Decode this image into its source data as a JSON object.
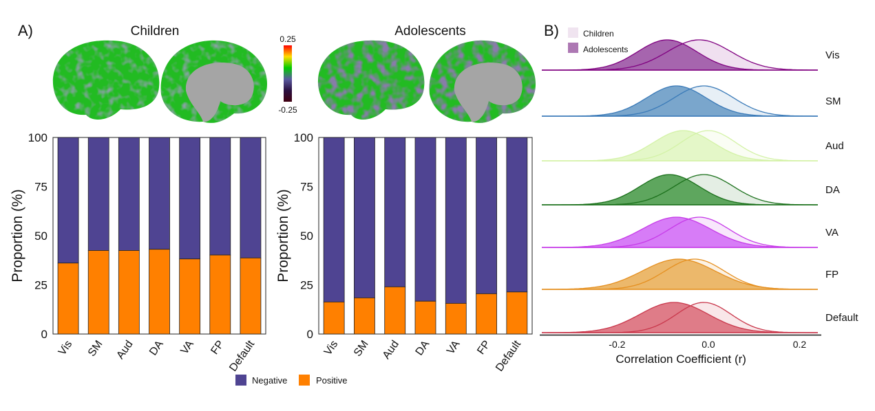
{
  "panel_a_label": "A)",
  "panel_b_label": "B)",
  "brain": {
    "children_title": "Children",
    "adolescents_title": "Adolescents",
    "colorbar_max": "0.25",
    "colorbar_min": "-0.25"
  },
  "legend_bars": {
    "negative": "Negative",
    "positive": "Positive"
  },
  "colors": {
    "negative": "#4f4492",
    "positive": "#ff8000"
  },
  "chart_data": [
    {
      "type": "bar",
      "title": "Children",
      "stacked": true,
      "categories": [
        "Vis",
        "SM",
        "Aud",
        "DA",
        "VA",
        "FP",
        "Default"
      ],
      "series": [
        {
          "name": "Positive",
          "values": [
            36.1,
            42.5,
            42.5,
            43.1,
            38.2,
            40.2,
            38.7
          ]
        },
        {
          "name": "Negative",
          "values": [
            63.9,
            57.5,
            57.5,
            56.9,
            61.8,
            59.8,
            61.3
          ]
        }
      ],
      "ylabel": "Proportion (%)",
      "ylim": [
        0,
        100
      ],
      "yticks": [
        "0",
        "25",
        "50",
        "75",
        "100"
      ]
    },
    {
      "type": "bar",
      "title": "Adolescents",
      "stacked": true,
      "categories": [
        "Vis",
        "SM",
        "Aud",
        "DA",
        "VA",
        "FP",
        "Default"
      ],
      "series": [
        {
          "name": "Positive",
          "values": [
            16.3,
            18.4,
            24.0,
            16.7,
            15.6,
            20.5,
            21.4
          ]
        },
        {
          "name": "Negative",
          "values": [
            83.7,
            81.6,
            76.0,
            83.3,
            84.4,
            79.5,
            78.6
          ]
        }
      ],
      "ylabel": "Proportion (%)",
      "ylim": [
        0,
        100
      ],
      "yticks": [
        "0",
        "25",
        "50",
        "75",
        "100"
      ]
    },
    {
      "type": "area",
      "subtype": "ridgeline-density",
      "xlabel": "Correlation Coefficient (r)",
      "xlim": [
        -0.365,
        0.24
      ],
      "xticks": [
        "-0.2",
        "0.0",
        "0.2"
      ],
      "legend": [
        "Children",
        "Adolescents"
      ],
      "legend_position": "top-left",
      "networks": [
        {
          "name": "Vis",
          "line": "#800080",
          "fill": "#a665ae",
          "children": {
            "peak": -0.02,
            "sd": 0.07
          },
          "adolescents": {
            "peak": -0.09,
            "sd": 0.065
          }
        },
        {
          "name": "SM",
          "line": "#3a7ab8",
          "fill": "#7aa6cc",
          "children": {
            "peak": -0.01,
            "sd": 0.065
          },
          "adolescents": {
            "peak": -0.07,
            "sd": 0.065
          }
        },
        {
          "name": "Aud",
          "line": "#d3f2a6",
          "fill": "#e4f7c8",
          "children": {
            "peak": 0.0,
            "sd": 0.06
          },
          "adolescents": {
            "peak": -0.055,
            "sd": 0.065
          }
        },
        {
          "name": "DA",
          "line": "#1b701b",
          "fill": "#5ea65e",
          "children": {
            "peak": -0.01,
            "sd": 0.065
          },
          "adolescents": {
            "peak": -0.085,
            "sd": 0.065
          }
        },
        {
          "name": "VA",
          "line": "#c63ae8",
          "fill": "#d77cf7",
          "children": {
            "peak": -0.02,
            "sd": 0.065
          },
          "adolescents": {
            "peak": -0.07,
            "sd": 0.075
          }
        },
        {
          "name": "FP",
          "line": "#e58f1f",
          "fill": "#ecb86b",
          "children": {
            "peak": -0.03,
            "sd": 0.065
          },
          "adolescents": {
            "peak": -0.065,
            "sd": 0.08
          }
        },
        {
          "name": "Default",
          "line": "#c9374b",
          "fill": "#df7c88",
          "children": {
            "peak": -0.01,
            "sd": 0.06
          },
          "adolescents": {
            "peak": -0.075,
            "sd": 0.075
          }
        }
      ]
    }
  ]
}
